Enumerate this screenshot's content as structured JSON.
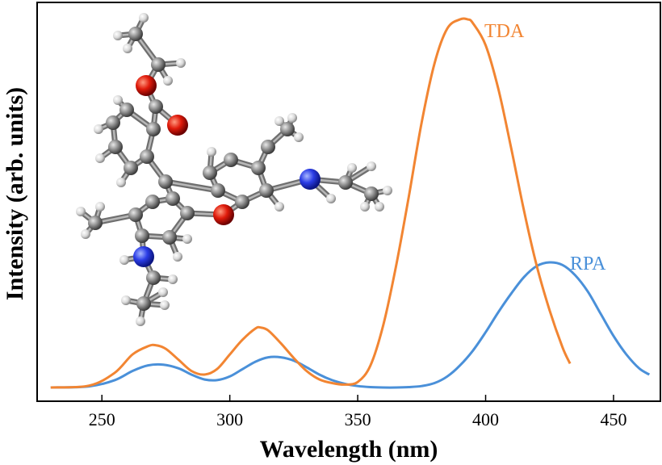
{
  "chart_data": {
    "type": "line",
    "xlabel": "Wavelength (nm)",
    "ylabel": "Intensity (arb. units)",
    "xlim": [
      225,
      468
    ],
    "ylim": [
      0,
      1
    ],
    "xticks": [
      250,
      300,
      350,
      400,
      450
    ],
    "grid": false,
    "legend": "inline labels",
    "series": [
      {
        "name": "TDA",
        "color": "#F28532",
        "x": [
          230,
          245,
          255,
          262,
          268,
          271,
          275,
          280,
          285,
          290,
          295,
          300,
          305,
          310,
          312,
          315,
          320,
          325,
          330,
          335,
          340,
          345,
          350,
          355,
          360,
          365,
          370,
          375,
          380,
          385,
          390,
          393,
          395,
          400,
          405,
          410,
          415,
          420,
          425,
          430,
          433
        ],
        "y": [
          0.0,
          0.005,
          0.04,
          0.09,
          0.112,
          0.115,
          0.105,
          0.075,
          0.045,
          0.035,
          0.05,
          0.09,
          0.13,
          0.16,
          0.163,
          0.155,
          0.12,
          0.08,
          0.045,
          0.022,
          0.012,
          0.008,
          0.015,
          0.06,
          0.17,
          0.33,
          0.52,
          0.72,
          0.88,
          0.975,
          1.0,
          1.0,
          0.99,
          0.93,
          0.81,
          0.65,
          0.48,
          0.33,
          0.21,
          0.11,
          0.065
        ]
      },
      {
        "name": "RPA",
        "color": "#4A90D9",
        "x": [
          230,
          245,
          255,
          262,
          268,
          274,
          280,
          285,
          290,
          295,
          300,
          305,
          310,
          315,
          320,
          325,
          330,
          335,
          340,
          345,
          350,
          355,
          360,
          365,
          370,
          375,
          380,
          385,
          390,
          395,
          400,
          405,
          410,
          415,
          420,
          425,
          430,
          435,
          440,
          445,
          450,
          455,
          460,
          464
        ],
        "y": [
          0.0,
          0.003,
          0.02,
          0.045,
          0.06,
          0.062,
          0.052,
          0.035,
          0.022,
          0.02,
          0.03,
          0.05,
          0.07,
          0.082,
          0.082,
          0.073,
          0.055,
          0.035,
          0.02,
          0.01,
          0.004,
          0.001,
          0.0,
          0.0,
          0.001,
          0.004,
          0.012,
          0.03,
          0.06,
          0.1,
          0.15,
          0.205,
          0.255,
          0.3,
          0.33,
          0.34,
          0.333,
          0.305,
          0.26,
          0.2,
          0.14,
          0.09,
          0.052,
          0.035
        ]
      }
    ]
  }
}
